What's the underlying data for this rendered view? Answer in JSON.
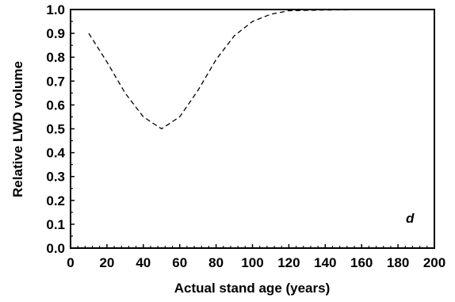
{
  "chart_data": {
    "type": "line",
    "title": "",
    "xlabel": "Actual stand age (years)",
    "ylabel": "Relative LWD volume",
    "panel_label": "d",
    "xlim": [
      0,
      200
    ],
    "ylim": [
      0.0,
      1.0
    ],
    "x_ticks": [
      0,
      20,
      40,
      60,
      80,
      100,
      120,
      140,
      160,
      180,
      200
    ],
    "y_ticks": [
      "0.0",
      "0.1",
      "0.2",
      "0.3",
      "0.4",
      "0.5",
      "0.6",
      "0.7",
      "0.8",
      "0.9",
      "1.0"
    ],
    "grid": false,
    "series": [
      {
        "line_style": "dashed",
        "color": "#000000",
        "x": [
          10,
          20,
          30,
          40,
          50,
          60,
          70,
          80,
          90,
          100,
          110,
          120,
          140,
          160,
          180,
          200
        ],
        "y": [
          0.9,
          0.78,
          0.65,
          0.55,
          0.5,
          0.55,
          0.66,
          0.79,
          0.89,
          0.95,
          0.98,
          0.995,
          0.998,
          0.999,
          1.0,
          1.0
        ]
      }
    ]
  }
}
